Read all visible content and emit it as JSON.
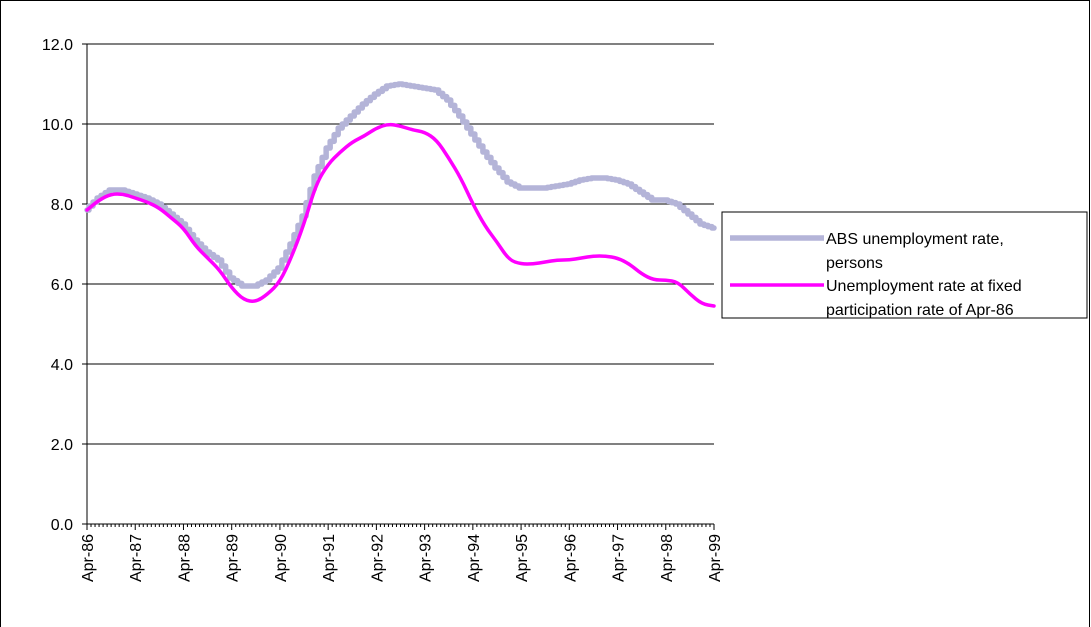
{
  "chart_data": {
    "type": "line",
    "title": "",
    "xlabel": "",
    "ylabel": "",
    "ylim": [
      0,
      12
    ],
    "y_ticks": [
      "0.0",
      "2.0",
      "4.0",
      "6.0",
      "8.0",
      "10.0",
      "12.0"
    ],
    "categories": [
      "Apr-86",
      "Apr-87",
      "Apr-88",
      "Apr-89",
      "Apr-90",
      "Apr-91",
      "Apr-92",
      "Apr-93",
      "Apr-94",
      "Apr-95",
      "Apr-96",
      "Apr-97",
      "Apr-98",
      "Apr-99"
    ],
    "grid": "horizontal",
    "legend_position": "right",
    "series": [
      {
        "name": "ABS unemployment rate, persons",
        "color": "#B4B4D8",
        "style": "thick-stepped",
        "points": [
          [
            "1986-04",
            7.85
          ],
          [
            "1986-07",
            8.15
          ],
          [
            "1986-10",
            8.35
          ],
          [
            "1987-01",
            8.35
          ],
          [
            "1987-04",
            8.25
          ],
          [
            "1987-07",
            8.15
          ],
          [
            "1987-10",
            8.0
          ],
          [
            "1988-01",
            7.75
          ],
          [
            "1988-04",
            7.5
          ],
          [
            "1988-07",
            7.1
          ],
          [
            "1988-10",
            6.8
          ],
          [
            "1989-01",
            6.6
          ],
          [
            "1989-04",
            6.15
          ],
          [
            "1989-07",
            5.95
          ],
          [
            "1989-10",
            5.95
          ],
          [
            "1990-01",
            6.1
          ],
          [
            "1990-04",
            6.4
          ],
          [
            "1990-07",
            7.0
          ],
          [
            "1990-10",
            7.7
          ],
          [
            "1991-01",
            8.7
          ],
          [
            "1991-04",
            9.4
          ],
          [
            "1991-07",
            9.9
          ],
          [
            "1991-10",
            10.2
          ],
          [
            "1992-01",
            10.5
          ],
          [
            "1992-04",
            10.75
          ],
          [
            "1992-07",
            10.95
          ],
          [
            "1992-10",
            11.0
          ],
          [
            "1993-01",
            10.95
          ],
          [
            "1993-04",
            10.9
          ],
          [
            "1993-07",
            10.85
          ],
          [
            "1993-10",
            10.6
          ],
          [
            "1994-01",
            10.2
          ],
          [
            "1994-04",
            9.75
          ],
          [
            "1994-07",
            9.3
          ],
          [
            "1994-10",
            8.9
          ],
          [
            "1995-01",
            8.55
          ],
          [
            "1995-04",
            8.4
          ],
          [
            "1995-07",
            8.4
          ],
          [
            "1995-10",
            8.4
          ],
          [
            "1996-01",
            8.45
          ],
          [
            "1996-04",
            8.5
          ],
          [
            "1996-07",
            8.6
          ],
          [
            "1996-10",
            8.65
          ],
          [
            "1997-01",
            8.65
          ],
          [
            "1997-04",
            8.6
          ],
          [
            "1997-07",
            8.5
          ],
          [
            "1997-10",
            8.3
          ],
          [
            "1998-01",
            8.1
          ],
          [
            "1998-04",
            8.1
          ],
          [
            "1998-07",
            8.0
          ],
          [
            "1998-10",
            7.75
          ],
          [
            "1999-01",
            7.5
          ],
          [
            "1999-04",
            7.4
          ]
        ]
      },
      {
        "name": "Unemployment rate at fixed participation rate of Apr-86",
        "color": "#FF00FF",
        "style": "solid",
        "points": [
          [
            "1986-04",
            7.85
          ],
          [
            "1986-07",
            8.1
          ],
          [
            "1986-10",
            8.25
          ],
          [
            "1987-01",
            8.25
          ],
          [
            "1987-04",
            8.15
          ],
          [
            "1987-07",
            8.05
          ],
          [
            "1987-10",
            7.9
          ],
          [
            "1988-01",
            7.65
          ],
          [
            "1988-04",
            7.4
          ],
          [
            "1988-07",
            6.95
          ],
          [
            "1988-10",
            6.65
          ],
          [
            "1989-01",
            6.35
          ],
          [
            "1989-04",
            5.9
          ],
          [
            "1989-07",
            5.6
          ],
          [
            "1989-10",
            5.55
          ],
          [
            "1990-01",
            5.75
          ],
          [
            "1990-04",
            6.05
          ],
          [
            "1990-07",
            6.7
          ],
          [
            "1990-10",
            7.5
          ],
          [
            "1991-01",
            8.5
          ],
          [
            "1991-04",
            9.0
          ],
          [
            "1991-07",
            9.3
          ],
          [
            "1991-10",
            9.55
          ],
          [
            "1992-01",
            9.7
          ],
          [
            "1992-04",
            9.9
          ],
          [
            "1992-07",
            10.0
          ],
          [
            "1992-10",
            9.95
          ],
          [
            "1993-01",
            9.85
          ],
          [
            "1993-04",
            9.8
          ],
          [
            "1993-07",
            9.6
          ],
          [
            "1993-10",
            9.15
          ],
          [
            "1994-01",
            8.65
          ],
          [
            "1994-04",
            8.0
          ],
          [
            "1994-07",
            7.45
          ],
          [
            "1994-10",
            7.05
          ],
          [
            "1995-01",
            6.6
          ],
          [
            "1995-04",
            6.5
          ],
          [
            "1995-07",
            6.5
          ],
          [
            "1995-10",
            6.55
          ],
          [
            "1996-01",
            6.6
          ],
          [
            "1996-04",
            6.6
          ],
          [
            "1996-07",
            6.65
          ],
          [
            "1996-10",
            6.7
          ],
          [
            "1997-01",
            6.7
          ],
          [
            "1997-04",
            6.65
          ],
          [
            "1997-07",
            6.5
          ],
          [
            "1997-10",
            6.25
          ],
          [
            "1998-01",
            6.1
          ],
          [
            "1998-04",
            6.1
          ],
          [
            "1998-07",
            6.05
          ],
          [
            "1998-10",
            5.75
          ],
          [
            "1999-01",
            5.5
          ],
          [
            "1999-04",
            5.45
          ]
        ]
      }
    ]
  }
}
